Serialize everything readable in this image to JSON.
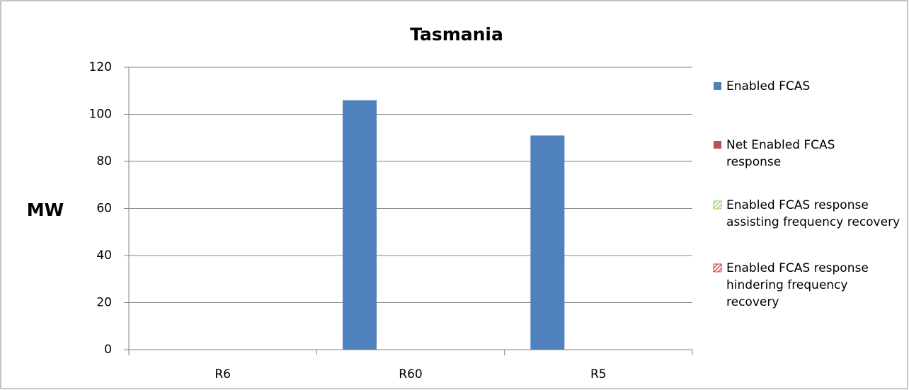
{
  "chart_data": {
    "type": "bar",
    "title": "Tasmania",
    "y_label": "MW",
    "categories": [
      "R6",
      "R60",
      "R5"
    ],
    "series": [
      {
        "name": "Enabled FCAS",
        "color": "#4f81bd",
        "values": [
          0,
          106,
          91
        ]
      },
      {
        "name": "Net Enabled FCAS response",
        "color": "#c0504d",
        "values": [
          0,
          0,
          0
        ]
      },
      {
        "name": "Enabled FCAS response assisting frequency recovery",
        "color": "#92d050",
        "pattern": "hatch",
        "values": [
          0,
          0,
          0
        ]
      },
      {
        "name": "Enabled FCAS response hindering frequency recovery",
        "color": "#e0302a",
        "pattern": "hatch",
        "values": [
          0,
          0,
          0
        ]
      }
    ],
    "ylim": [
      0,
      120
    ],
    "yticks": [
      0,
      20,
      40,
      60,
      80,
      100,
      120
    ],
    "grid": true,
    "legend": "right"
  }
}
